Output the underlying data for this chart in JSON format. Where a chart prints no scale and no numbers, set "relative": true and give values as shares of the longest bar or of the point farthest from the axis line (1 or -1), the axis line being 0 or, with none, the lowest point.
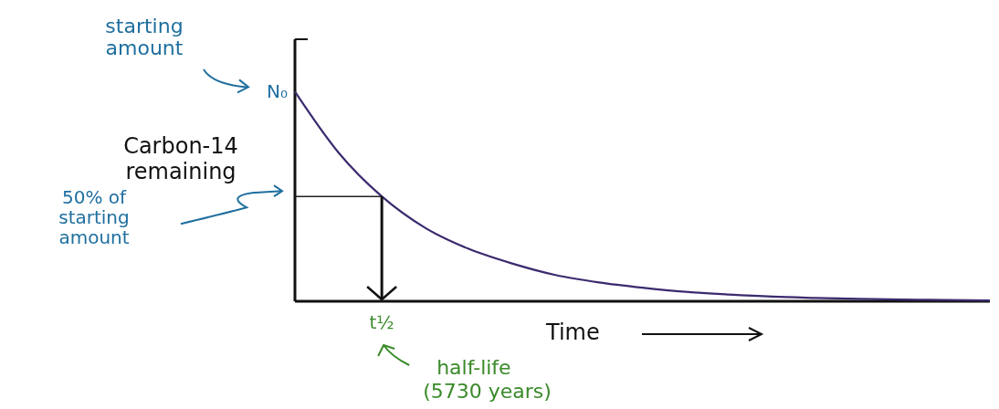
{
  "chart_data": {
    "type": "line",
    "relative": true,
    "xlabel": "Time",
    "ylabel": "Carbon-14 remaining",
    "categories": [
      null,
      null,
      null,
      null,
      null,
      null,
      null,
      null,
      null,
      null,
      null,
      null,
      null,
      null,
      null,
      null,
      null
    ],
    "series": [
      {
        "color": "#3b2a6e",
        "values": [
          1,
          0.71,
          0.5,
          0.35,
          0.25,
          0.18,
          0.125,
          0.09,
          0.065,
          0.045,
          0.032,
          0.022,
          0.016,
          0.011,
          0.008,
          0.006,
          0.004
        ]
      }
    ],
    "annotations": [
      "starting amount",
      "N₀",
      "50% of starting amount",
      "t½",
      "half-life (5730 years)"
    ],
    "marker": "none",
    "line_style": "solid"
  }
}
